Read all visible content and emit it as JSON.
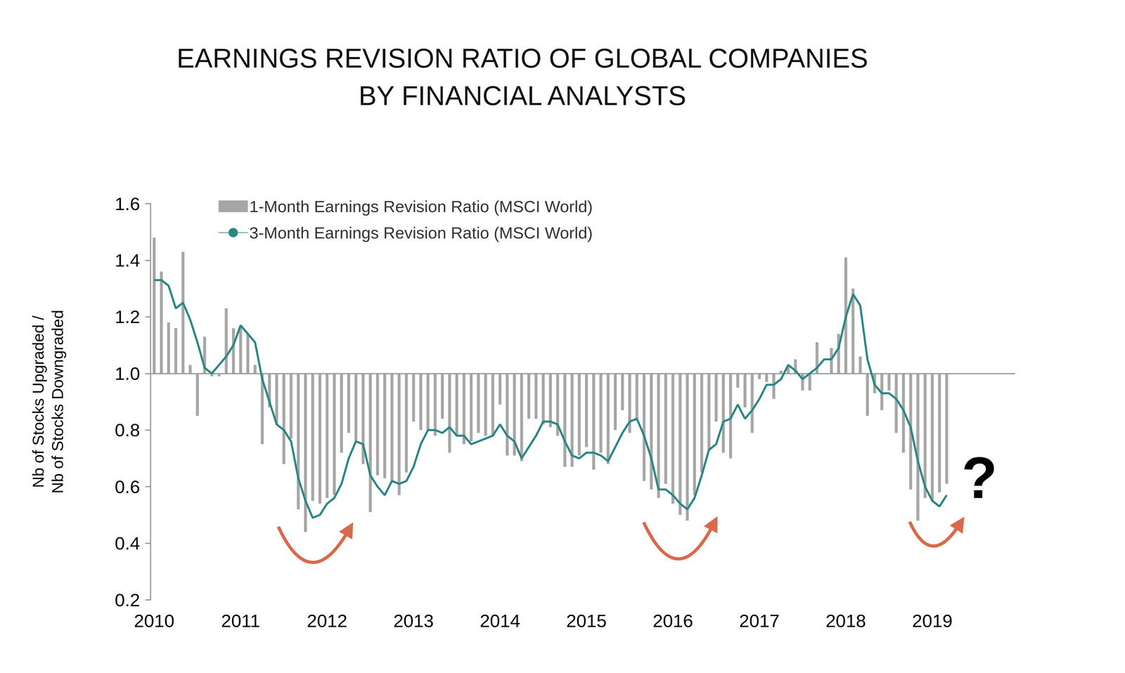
{
  "chart_data": {
    "type": "bar",
    "title": "EARNINGS REVISION RATIO OF GLOBAL COMPANIES\nBY FINANCIAL ANALYSTS",
    "y_label": "Nb of Stocks Upgraded /\nNb of Stocks Downgraded",
    "categories": [
      "2010",
      null,
      null,
      null,
      null,
      null,
      null,
      null,
      null,
      null,
      null,
      null,
      "2011",
      null,
      null,
      null,
      null,
      null,
      null,
      null,
      null,
      null,
      null,
      null,
      "2012",
      null,
      null,
      null,
      null,
      null,
      null,
      null,
      null,
      null,
      null,
      null,
      "2013",
      null,
      null,
      null,
      null,
      null,
      null,
      null,
      null,
      null,
      null,
      null,
      "2014",
      null,
      null,
      null,
      null,
      null,
      null,
      null,
      null,
      null,
      null,
      null,
      "2015",
      null,
      null,
      null,
      null,
      null,
      null,
      null,
      null,
      null,
      null,
      null,
      "2016",
      null,
      null,
      null,
      null,
      null,
      null,
      null,
      null,
      null,
      null,
      null,
      "2017",
      null,
      null,
      null,
      null,
      null,
      null,
      null,
      null,
      null,
      null,
      null,
      "2018",
      null,
      null,
      null,
      null,
      null,
      null,
      null,
      null,
      null,
      null,
      null,
      "2019",
      null,
      null,
      null,
      null,
      null,
      null,
      null,
      null,
      null,
      null,
      null
    ],
    "series": [
      {
        "name": "1-Month Earnings Revision Ratio (MSCI World)",
        "type": "bar",
        "color": "#a6a6a6",
        "baseline": 1.0,
        "values": [
          1.48,
          1.36,
          1.18,
          1.16,
          1.43,
          1.03,
          0.85,
          1.13,
          0.99,
          0.99,
          1.23,
          1.16,
          1.17,
          1.14,
          1.03,
          0.75,
          0.88,
          0.82,
          0.68,
          0.77,
          0.52,
          0.44,
          0.55,
          0.54,
          0.56,
          0.57,
          0.72,
          0.79,
          0.76,
          0.68,
          0.51,
          0.64,
          0.63,
          0.62,
          0.57,
          0.65,
          0.83,
          0.8,
          0.8,
          0.78,
          0.84,
          0.72,
          0.78,
          0.75,
          0.76,
          0.79,
          0.78,
          0.78,
          0.89,
          0.71,
          0.71,
          0.69,
          0.84,
          0.84,
          0.82,
          0.81,
          0.78,
          0.67,
          0.67,
          0.71,
          0.74,
          0.66,
          0.72,
          0.68,
          0.8,
          0.87,
          0.79,
          0.84,
          0.62,
          0.59,
          0.56,
          0.61,
          0.54,
          0.5,
          0.48,
          0.57,
          0.65,
          0.73,
          0.83,
          0.72,
          0.7,
          0.95,
          0.88,
          0.79,
          0.98,
          0.97,
          0.91,
          1.01,
          1.03,
          1.05,
          0.94,
          0.94,
          1.11,
          1.0,
          1.09,
          1.14,
          1.41,
          1.3,
          1.06,
          0.85,
          0.93,
          0.87,
          0.94,
          0.79,
          0.72,
          0.59,
          0.48,
          0.56,
          0.55,
          0.58,
          0.61,
          null,
          null,
          null,
          null,
          null,
          null,
          null,
          null,
          null
        ]
      },
      {
        "name": "3-Month Earnings Revision Ratio (MSCI World)",
        "type": "line",
        "color": "#2b8686",
        "values": [
          1.33,
          1.33,
          1.31,
          1.23,
          1.25,
          1.19,
          1.11,
          1.02,
          1.0,
          1.03,
          1.06,
          1.1,
          1.17,
          1.14,
          1.11,
          0.98,
          0.9,
          0.82,
          0.8,
          0.76,
          0.63,
          0.55,
          0.49,
          0.5,
          0.54,
          0.56,
          0.61,
          0.7,
          0.76,
          0.75,
          0.64,
          0.6,
          0.57,
          0.62,
          0.61,
          0.62,
          0.67,
          0.75,
          0.8,
          0.8,
          0.79,
          0.81,
          0.78,
          0.78,
          0.75,
          0.76,
          0.77,
          0.78,
          0.82,
          0.78,
          0.76,
          0.7,
          0.74,
          0.78,
          0.83,
          0.83,
          0.82,
          0.76,
          0.71,
          0.7,
          0.72,
          0.72,
          0.71,
          0.69,
          0.74,
          0.79,
          0.83,
          0.84,
          0.78,
          0.7,
          0.59,
          0.59,
          0.57,
          0.54,
          0.52,
          0.56,
          0.64,
          0.73,
          0.75,
          0.83,
          0.84,
          0.89,
          0.84,
          0.87,
          0.91,
          0.96,
          0.96,
          0.98,
          1.03,
          1.01,
          0.98,
          1.0,
          1.02,
          1.05,
          1.05,
          1.09,
          1.2,
          1.28,
          1.24,
          1.05,
          0.96,
          0.93,
          0.93,
          0.91,
          0.87,
          0.81,
          0.69,
          0.6,
          0.55,
          0.53,
          0.57,
          null,
          null,
          null,
          null,
          null,
          null,
          null,
          null,
          null
        ]
      }
    ],
    "ylim": [
      0.2,
      1.6
    ],
    "yticks": [
      0.2,
      0.4,
      0.6,
      0.8,
      {
        "value": 1,
        "label": "1.0"
      },
      1.2,
      1.4,
      1.6
    ],
    "grid": false,
    "legend": "upper left",
    "annotations": [
      {
        "text": "?"
      }
    ]
  }
}
